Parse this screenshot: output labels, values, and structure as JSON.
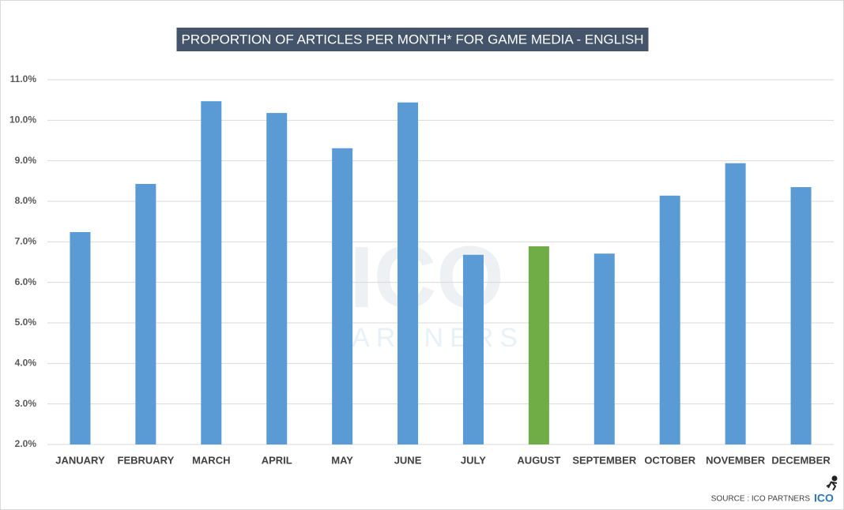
{
  "chart_data": {
    "type": "bar",
    "title": "PROPORTION OF ARTICLES PER MONTH* FOR GAME MEDIA - ENGLISH",
    "categories": [
      "JANUARY",
      "FEBRUARY",
      "MARCH",
      "APRIL",
      "MAY",
      "JUNE",
      "JULY",
      "AUGUST",
      "SEPTEMBER",
      "OCTOBER",
      "NOVEMBER",
      "DECEMBER"
    ],
    "values": [
      7.24,
      8.43,
      10.47,
      10.18,
      9.31,
      10.44,
      6.68,
      6.89,
      6.71,
      8.14,
      8.94,
      8.35
    ],
    "colors": [
      "#5b9bd5",
      "#5b9bd5",
      "#5b9bd5",
      "#5b9bd5",
      "#5b9bd5",
      "#5b9bd5",
      "#5b9bd5",
      "#70ad47",
      "#5b9bd5",
      "#5b9bd5",
      "#5b9bd5",
      "#5b9bd5"
    ],
    "ylim": [
      2,
      11
    ],
    "yticks": [
      {
        "value": 2,
        "label": "2.0%"
      },
      {
        "value": 3,
        "label": "3.0%"
      },
      {
        "value": 4,
        "label": "4.0%"
      },
      {
        "value": 5,
        "label": "5.0%"
      },
      {
        "value": 6,
        "label": "6.0%"
      },
      {
        "value": 7,
        "label": "7.0%"
      },
      {
        "value": 8,
        "label": "8.0%"
      },
      {
        "value": 9,
        "label": "9.0%"
      },
      {
        "value": 10,
        "label": "10.0%"
      },
      {
        "value": 11,
        "label": "11.0%"
      }
    ],
    "grid": true,
    "watermark": [
      "ICO",
      "PARTNERS"
    ],
    "source": "SOURCE : ICO PARTNERS",
    "logo": "ICO"
  }
}
